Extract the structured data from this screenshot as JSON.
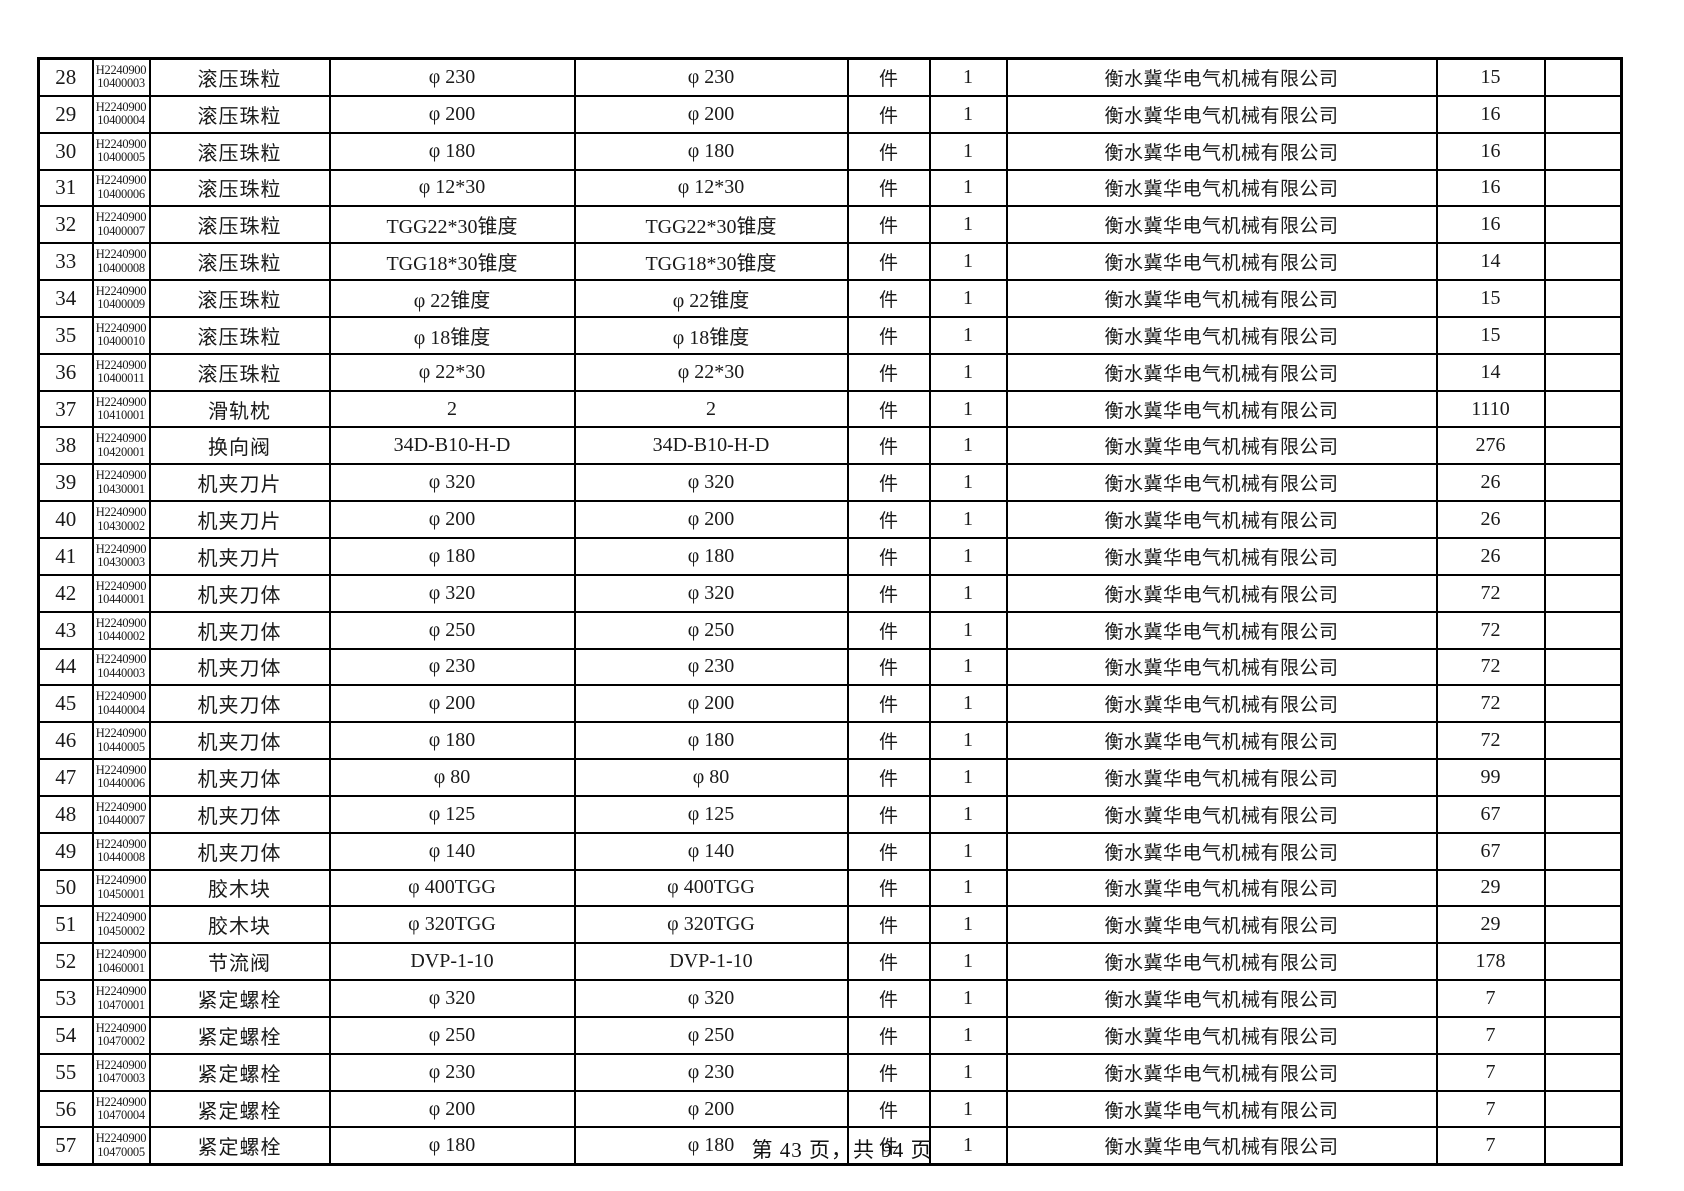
{
  "footer": {
    "text": "第 43 页，共 94 页"
  },
  "table": {
    "rows": [
      {
        "no": "28",
        "code_line1": "H2240900",
        "code_line2": "10400003",
        "name": "滚压珠粒",
        "spec": "φ 230",
        "spec2": "φ 230",
        "unit": "件",
        "qty": "1",
        "supplier": "衡水冀华电气机械有限公司",
        "amount": "15",
        "extra": ""
      },
      {
        "no": "29",
        "code_line1": "H2240900",
        "code_line2": "10400004",
        "name": "滚压珠粒",
        "spec": "φ 200",
        "spec2": "φ 200",
        "unit": "件",
        "qty": "1",
        "supplier": "衡水冀华电气机械有限公司",
        "amount": "16",
        "extra": ""
      },
      {
        "no": "30",
        "code_line1": "H2240900",
        "code_line2": "10400005",
        "name": "滚压珠粒",
        "spec": "φ 180",
        "spec2": "φ 180",
        "unit": "件",
        "qty": "1",
        "supplier": "衡水冀华电气机械有限公司",
        "amount": "16",
        "extra": ""
      },
      {
        "no": "31",
        "code_line1": "H2240900",
        "code_line2": "10400006",
        "name": "滚压珠粒",
        "spec": "φ 12*30",
        "spec2": "φ 12*30",
        "unit": "件",
        "qty": "1",
        "supplier": "衡水冀华电气机械有限公司",
        "amount": "16",
        "extra": ""
      },
      {
        "no": "32",
        "code_line1": "H2240900",
        "code_line2": "10400007",
        "name": "滚压珠粒",
        "spec": "TGG22*30锥度",
        "spec2": "TGG22*30锥度",
        "unit": "件",
        "qty": "1",
        "supplier": "衡水冀华电气机械有限公司",
        "amount": "16",
        "extra": ""
      },
      {
        "no": "33",
        "code_line1": "H2240900",
        "code_line2": "10400008",
        "name": "滚压珠粒",
        "spec": "TGG18*30锥度",
        "spec2": "TGG18*30锥度",
        "unit": "件",
        "qty": "1",
        "supplier": "衡水冀华电气机械有限公司",
        "amount": "14",
        "extra": ""
      },
      {
        "no": "34",
        "code_line1": "H2240900",
        "code_line2": "10400009",
        "name": "滚压珠粒",
        "spec": "φ 22锥度",
        "spec2": "φ 22锥度",
        "unit": "件",
        "qty": "1",
        "supplier": "衡水冀华电气机械有限公司",
        "amount": "15",
        "extra": ""
      },
      {
        "no": "35",
        "code_line1": "H2240900",
        "code_line2": "10400010",
        "name": "滚压珠粒",
        "spec": "φ 18锥度",
        "spec2": "φ 18锥度",
        "unit": "件",
        "qty": "1",
        "supplier": "衡水冀华电气机械有限公司",
        "amount": "15",
        "extra": ""
      },
      {
        "no": "36",
        "code_line1": "H2240900",
        "code_line2": "10400011",
        "name": "滚压珠粒",
        "spec": "φ 22*30",
        "spec2": "φ 22*30",
        "unit": "件",
        "qty": "1",
        "supplier": "衡水冀华电气机械有限公司",
        "amount": "14",
        "extra": ""
      },
      {
        "no": "37",
        "code_line1": "H2240900",
        "code_line2": "10410001",
        "name": "滑轨枕",
        "spec": "2",
        "spec2": "2",
        "unit": "件",
        "qty": "1",
        "supplier": "衡水冀华电气机械有限公司",
        "amount": "1110",
        "extra": ""
      },
      {
        "no": "38",
        "code_line1": "H2240900",
        "code_line2": "10420001",
        "name": "换向阀",
        "spec": "34D-B10-H-D",
        "spec2": "34D-B10-H-D",
        "unit": "件",
        "qty": "1",
        "supplier": "衡水冀华电气机械有限公司",
        "amount": "276",
        "extra": ""
      },
      {
        "no": "39",
        "code_line1": "H2240900",
        "code_line2": "10430001",
        "name": "机夹刀片",
        "spec": "φ 320",
        "spec2": "φ 320",
        "unit": "件",
        "qty": "1",
        "supplier": "衡水冀华电气机械有限公司",
        "amount": "26",
        "extra": ""
      },
      {
        "no": "40",
        "code_line1": "H2240900",
        "code_line2": "10430002",
        "name": "机夹刀片",
        "spec": "φ 200",
        "spec2": "φ 200",
        "unit": "件",
        "qty": "1",
        "supplier": "衡水冀华电气机械有限公司",
        "amount": "26",
        "extra": ""
      },
      {
        "no": "41",
        "code_line1": "H2240900",
        "code_line2": "10430003",
        "name": "机夹刀片",
        "spec": "φ 180",
        "spec2": "φ 180",
        "unit": "件",
        "qty": "1",
        "supplier": "衡水冀华电气机械有限公司",
        "amount": "26",
        "extra": ""
      },
      {
        "no": "42",
        "code_line1": "H2240900",
        "code_line2": "10440001",
        "name": "机夹刀体",
        "spec": "φ 320",
        "spec2": "φ 320",
        "unit": "件",
        "qty": "1",
        "supplier": "衡水冀华电气机械有限公司",
        "amount": "72",
        "extra": ""
      },
      {
        "no": "43",
        "code_line1": "H2240900",
        "code_line2": "10440002",
        "name": "机夹刀体",
        "spec": "φ 250",
        "spec2": "φ 250",
        "unit": "件",
        "qty": "1",
        "supplier": "衡水冀华电气机械有限公司",
        "amount": "72",
        "extra": ""
      },
      {
        "no": "44",
        "code_line1": "H2240900",
        "code_line2": "10440003",
        "name": "机夹刀体",
        "spec": "φ 230",
        "spec2": "φ 230",
        "unit": "件",
        "qty": "1",
        "supplier": "衡水冀华电气机械有限公司",
        "amount": "72",
        "extra": ""
      },
      {
        "no": "45",
        "code_line1": "H2240900",
        "code_line2": "10440004",
        "name": "机夹刀体",
        "spec": "φ 200",
        "spec2": "φ 200",
        "unit": "件",
        "qty": "1",
        "supplier": "衡水冀华电气机械有限公司",
        "amount": "72",
        "extra": ""
      },
      {
        "no": "46",
        "code_line1": "H2240900",
        "code_line2": "10440005",
        "name": "机夹刀体",
        "spec": "φ 180",
        "spec2": "φ 180",
        "unit": "件",
        "qty": "1",
        "supplier": "衡水冀华电气机械有限公司",
        "amount": "72",
        "extra": ""
      },
      {
        "no": "47",
        "code_line1": "H2240900",
        "code_line2": "10440006",
        "name": "机夹刀体",
        "spec": "φ 80",
        "spec2": "φ 80",
        "unit": "件",
        "qty": "1",
        "supplier": "衡水冀华电气机械有限公司",
        "amount": "99",
        "extra": ""
      },
      {
        "no": "48",
        "code_line1": "H2240900",
        "code_line2": "10440007",
        "name": "机夹刀体",
        "spec": "φ 125",
        "spec2": "φ 125",
        "unit": "件",
        "qty": "1",
        "supplier": "衡水冀华电气机械有限公司",
        "amount": "67",
        "extra": ""
      },
      {
        "no": "49",
        "code_line1": "H2240900",
        "code_line2": "10440008",
        "name": "机夹刀体",
        "spec": "φ 140",
        "spec2": "φ 140",
        "unit": "件",
        "qty": "1",
        "supplier": "衡水冀华电气机械有限公司",
        "amount": "67",
        "extra": ""
      },
      {
        "no": "50",
        "code_line1": "H2240900",
        "code_line2": "10450001",
        "name": "胶木块",
        "spec": "φ 400TGG",
        "spec2": "φ 400TGG",
        "unit": "件",
        "qty": "1",
        "supplier": "衡水冀华电气机械有限公司",
        "amount": "29",
        "extra": ""
      },
      {
        "no": "51",
        "code_line1": "H2240900",
        "code_line2": "10450002",
        "name": "胶木块",
        "spec": "φ 320TGG",
        "spec2": "φ 320TGG",
        "unit": "件",
        "qty": "1",
        "supplier": "衡水冀华电气机械有限公司",
        "amount": "29",
        "extra": ""
      },
      {
        "no": "52",
        "code_line1": "H2240900",
        "code_line2": "10460001",
        "name": "节流阀",
        "spec": "DVP-1-10",
        "spec2": "DVP-1-10",
        "unit": "件",
        "qty": "1",
        "supplier": "衡水冀华电气机械有限公司",
        "amount": "178",
        "extra": ""
      },
      {
        "no": "53",
        "code_line1": "H2240900",
        "code_line2": "10470001",
        "name": "紧定螺栓",
        "spec": "φ 320",
        "spec2": "φ 320",
        "unit": "件",
        "qty": "1",
        "supplier": "衡水冀华电气机械有限公司",
        "amount": "7",
        "extra": ""
      },
      {
        "no": "54",
        "code_line1": "H2240900",
        "code_line2": "10470002",
        "name": "紧定螺栓",
        "spec": "φ 250",
        "spec2": "φ 250",
        "unit": "件",
        "qty": "1",
        "supplier": "衡水冀华电气机械有限公司",
        "amount": "7",
        "extra": ""
      },
      {
        "no": "55",
        "code_line1": "H2240900",
        "code_line2": "10470003",
        "name": "紧定螺栓",
        "spec": "φ 230",
        "spec2": "φ 230",
        "unit": "件",
        "qty": "1",
        "supplier": "衡水冀华电气机械有限公司",
        "amount": "7",
        "extra": ""
      },
      {
        "no": "56",
        "code_line1": "H2240900",
        "code_line2": "10470004",
        "name": "紧定螺栓",
        "spec": "φ 200",
        "spec2": "φ 200",
        "unit": "件",
        "qty": "1",
        "supplier": "衡水冀华电气机械有限公司",
        "amount": "7",
        "extra": ""
      },
      {
        "no": "57",
        "code_line1": "H2240900",
        "code_line2": "10470005",
        "name": "紧定螺栓",
        "spec": "φ 180",
        "spec2": "φ 180",
        "unit": "件",
        "qty": "1",
        "supplier": "衡水冀华电气机械有限公司",
        "amount": "7",
        "extra": ""
      }
    ]
  }
}
